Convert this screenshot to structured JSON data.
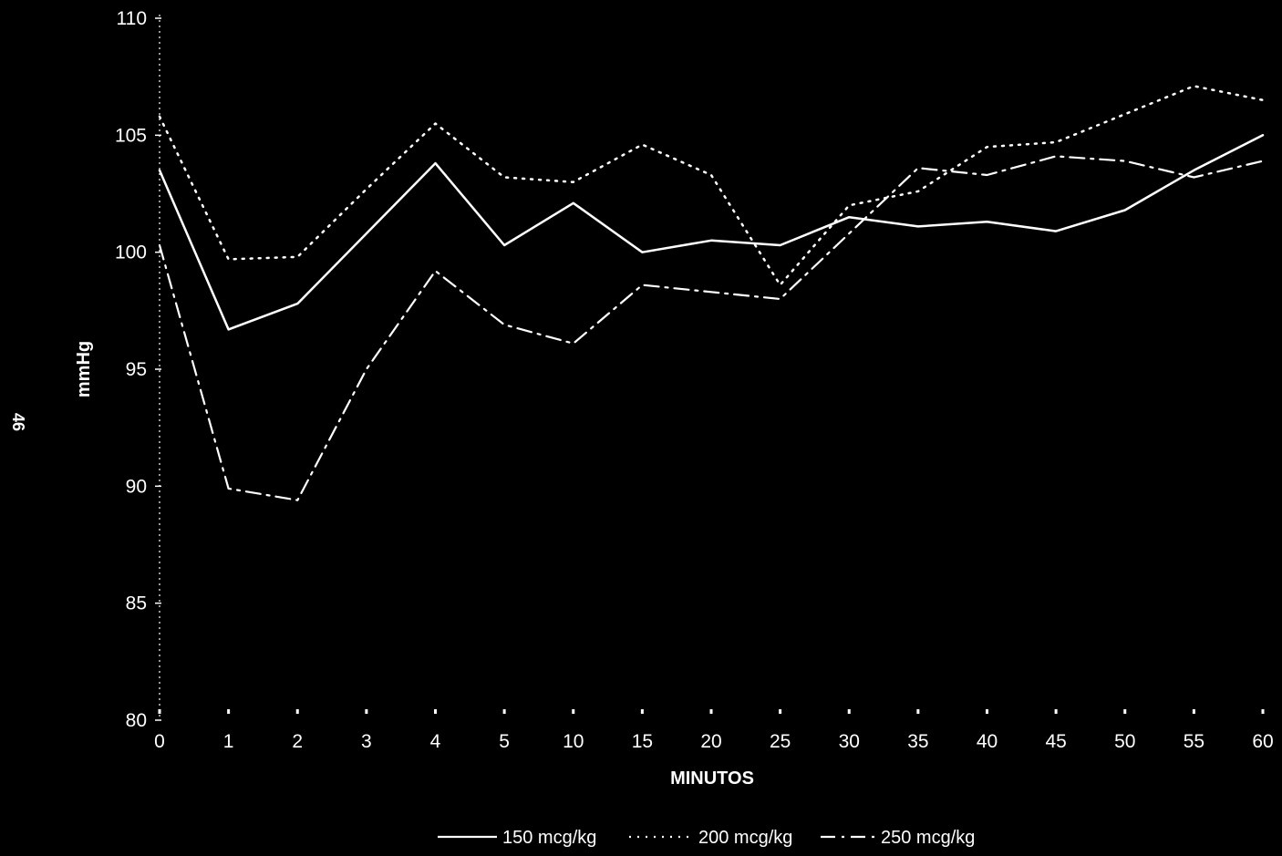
{
  "page_number": "46",
  "colors": {
    "background": "#000000",
    "foreground": "#ffffff"
  },
  "chart_data": {
    "type": "line",
    "title": "",
    "xlabel": "MINUTOS",
    "ylabel": "mmHg",
    "ylim": [
      80,
      110
    ],
    "yticks": [
      80,
      85,
      90,
      95,
      100,
      105,
      110
    ],
    "categories": [
      "0",
      "1",
      "2",
      "3",
      "4",
      "5",
      "10",
      "15",
      "20",
      "25",
      "30",
      "35",
      "40",
      "45",
      "50",
      "55",
      "60"
    ],
    "grid": false,
    "legend_position": "bottom-center",
    "series": [
      {
        "name": "150 mcg/kg",
        "style": "solid",
        "values": [
          103.5,
          96.7,
          97.8,
          100.8,
          103.8,
          100.3,
          102.1,
          100.0,
          100.5,
          100.3,
          101.5,
          101.1,
          101.3,
          100.9,
          101.8,
          103.5,
          105.0
        ]
      },
      {
        "name": "200 mcg/kg",
        "style": "dotted",
        "values": [
          105.8,
          99.7,
          99.8,
          102.7,
          105.5,
          103.2,
          103.0,
          104.6,
          103.3,
          98.6,
          102.0,
          102.6,
          104.5,
          104.7,
          105.9,
          107.1,
          106.5
        ]
      },
      {
        "name": "250 mcg/kg",
        "style": "dashdot",
        "values": [
          100.3,
          89.9,
          89.4,
          95.0,
          99.2,
          96.9,
          96.1,
          98.6,
          98.3,
          98.0,
          100.8,
          103.6,
          103.3,
          104.1,
          103.9,
          103.2,
          103.9
        ]
      }
    ]
  }
}
